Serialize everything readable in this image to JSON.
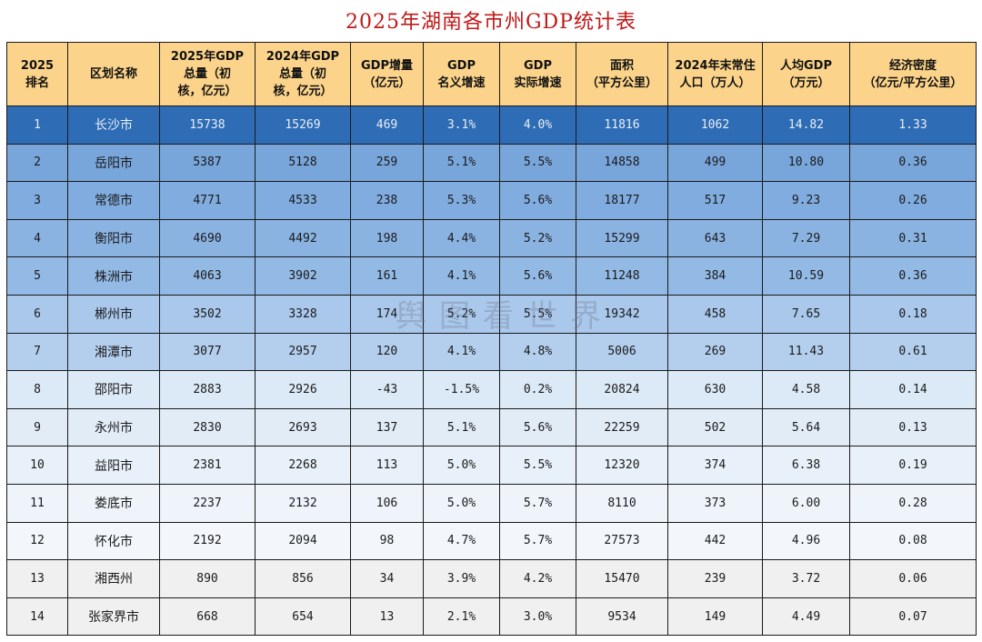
{
  "title": "2025年湖南各市州GDP统计表",
  "watermark": "舆图看世界",
  "headers": [
    [
      "2025",
      "排名"
    ],
    [
      "区划名称"
    ],
    [
      "2025年GDP",
      "总量（初",
      "核，亿元）"
    ],
    [
      "2024年GDP",
      "总量（初",
      "核，亿元）"
    ],
    [
      "GDP增量",
      "（亿元）"
    ],
    [
      "GDP",
      "名义增速"
    ],
    [
      "GDP",
      "实际增速"
    ],
    [
      "面积",
      "（平方公里）"
    ],
    [
      "2024年末常住",
      "人口（万人）"
    ],
    [
      "人均GDP",
      "（万元）"
    ],
    [
      "经济密度",
      "（亿元/平方公里）"
    ]
  ],
  "rows": [
    [
      "1",
      "长沙市",
      "15738",
      "15269",
      "469",
      "3.1%",
      "4.0%",
      "11816",
      "1062",
      "14.82",
      "1.33"
    ],
    [
      "2",
      "岳阳市",
      "5387",
      "5128",
      "259",
      "5.1%",
      "5.5%",
      "14858",
      "499",
      "10.80",
      "0.36"
    ],
    [
      "3",
      "常德市",
      "4771",
      "4533",
      "238",
      "5.3%",
      "5.6%",
      "18177",
      "517",
      "9.23",
      "0.26"
    ],
    [
      "4",
      "衡阳市",
      "4690",
      "4492",
      "198",
      "4.4%",
      "5.2%",
      "15299",
      "643",
      "7.29",
      "0.31"
    ],
    [
      "5",
      "株洲市",
      "4063",
      "3902",
      "161",
      "4.1%",
      "5.6%",
      "11248",
      "384",
      "10.59",
      "0.36"
    ],
    [
      "6",
      "郴州市",
      "3502",
      "3328",
      "174",
      "5.2%",
      "5.5%",
      "19342",
      "458",
      "7.65",
      "0.18"
    ],
    [
      "7",
      "湘潭市",
      "3077",
      "2957",
      "120",
      "4.1%",
      "4.8%",
      "5006",
      "269",
      "11.43",
      "0.61"
    ],
    [
      "8",
      "邵阳市",
      "2883",
      "2926",
      "-43",
      "-1.5%",
      "0.2%",
      "20824",
      "630",
      "4.58",
      "0.14"
    ],
    [
      "9",
      "永州市",
      "2830",
      "2693",
      "137",
      "5.1%",
      "5.6%",
      "22259",
      "502",
      "5.64",
      "0.13"
    ],
    [
      "10",
      "益阳市",
      "2381",
      "2268",
      "113",
      "5.0%",
      "5.5%",
      "12320",
      "374",
      "6.38",
      "0.19"
    ],
    [
      "11",
      "娄底市",
      "2237",
      "2132",
      "106",
      "5.0%",
      "5.7%",
      "8110",
      "373",
      "6.00",
      "0.28"
    ],
    [
      "12",
      "怀化市",
      "2192",
      "2094",
      "98",
      "4.7%",
      "5.7%",
      "27573",
      "442",
      "4.96",
      "0.08"
    ],
    [
      "13",
      "湘西州",
      "890",
      "856",
      "34",
      "3.9%",
      "4.2%",
      "15470",
      "239",
      "3.72",
      "0.06"
    ],
    [
      "14",
      "张家界市",
      "668",
      "654",
      "13",
      "2.1%",
      "3.0%",
      "9534",
      "149",
      "4.49",
      "0.07"
    ]
  ]
}
